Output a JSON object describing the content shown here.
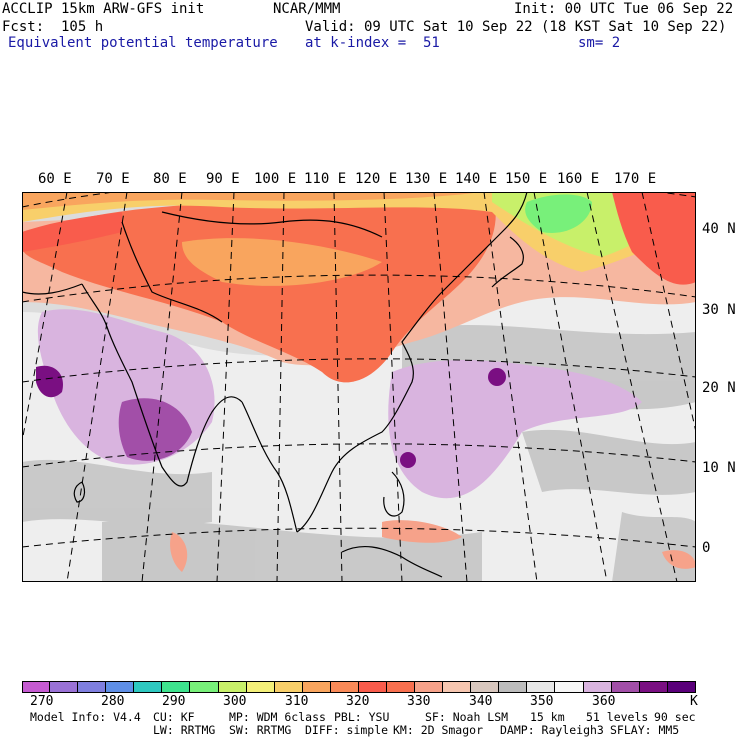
{
  "header": {
    "line1_left": "ACCLIP 15km ARW-GFS init",
    "line1_center": "NCAR/MMM",
    "line1_right": "Init: 00 UTC Tue 06 Sep 22",
    "line2_left": "Fcst:  105 h",
    "line2_right": "Valid: 09 UTC Sat 10 Sep 22 (18 KST Sat 10 Sep 22)",
    "line3_left": "Equivalent potential temperature",
    "line3_center": "at k-index =  51",
    "line3_right": "sm= 2"
  },
  "map": {
    "lon_labels": [
      "60 E",
      "70 E",
      "80 E",
      "90 E",
      "100 E",
      "110 E",
      "120 E",
      "130 E",
      "140 E",
      "150 E",
      "160 E",
      "170 E"
    ],
    "lat_labels": [
      "40 N",
      "30 N",
      "20 N",
      "10 N",
      "0"
    ]
  },
  "colorbar": {
    "colors": [
      "#c55bd1",
      "#9a72d6",
      "#7f7fdf",
      "#5f8fe6",
      "#2ec8c0",
      "#3ee38e",
      "#78f07a",
      "#c8f06a",
      "#f4f07a",
      "#f8cf6a",
      "#f9a55e",
      "#f98a58",
      "#f95c4c",
      "#f8704f",
      "#f6a28a",
      "#f6c6b0",
      "#d8c7be",
      "#bcbcbc",
      "#e6e6e6",
      "#f6f6f6",
      "#d9b4df",
      "#a24fa8",
      "#7a0f82",
      "#5a007a"
    ],
    "labels": [
      "270",
      "280",
      "290",
      "300",
      "310",
      "320",
      "330",
      "340",
      "350",
      "360",
      "K"
    ]
  },
  "footer": {
    "line1": [
      "Model Info: V4.4",
      "CU: KF",
      "MP: WDM 6class",
      "PBL: YSU",
      "SF: Noah LSM",
      "15 km",
      "51 levels",
      "90 sec"
    ],
    "line2": [
      "LW: RRTMG",
      "SW: RRTMG",
      "DIFF: simple",
      "KM: 2D Smagor",
      "DAMP: Rayleigh3",
      "SFLAY: MM5"
    ]
  }
}
